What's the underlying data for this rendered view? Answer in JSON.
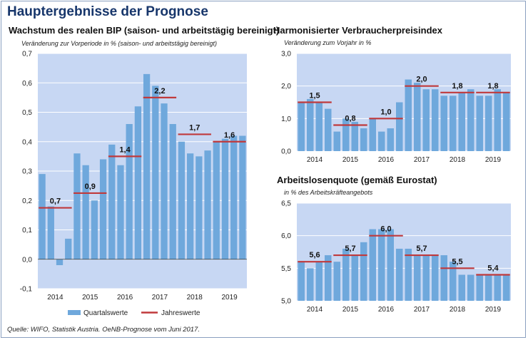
{
  "title": "Hauptergebnisse der Prognose",
  "source": "Quelle: WIFO, Statistik Austria. OeNB-Prognose vom Juni 2017.",
  "colors": {
    "bar": "#6fa8dc",
    "plot_bg": "#c7d7f3",
    "annual_line": "#c0393b",
    "title": "#17366b"
  },
  "panels": {
    "gdp": {
      "title": "Wachstum des realen BIP (saison- und arbeitstägig bereinigt)",
      "unit": "Veränderung zur Vorperiode in % (saison- und arbeitstägig bereinigt)",
      "legend": {
        "bars": "Quartalswerte",
        "line": "Jahreswerte"
      }
    },
    "hicp": {
      "title": "Harmonisierter Verbraucherpreisindex",
      "unit": "Veränderung zum Vorjahr in %"
    },
    "unemp": {
      "title": "Arbeitslosenquote (gemäß Eurostat)",
      "unit": "in % des Arbeitskräfteangebots"
    }
  },
  "chart_data": [
    {
      "id": "gdp",
      "type": "bar",
      "title": "Wachstum des realen BIP (saison- und arbeitstägig bereinigt)",
      "ylabel": "Veränderung zur Vorperiode in % (saison- und arbeitstägig bereinigt)",
      "ylim": [
        -0.1,
        0.7
      ],
      "yticks": [
        -0.1,
        0.0,
        0.1,
        0.2,
        0.3,
        0.4,
        0.5,
        0.6,
        0.7
      ],
      "ytick_labels": [
        "-0,1",
        "0,0",
        "0,1",
        "0,2",
        "0,3",
        "0,4",
        "0,5",
        "0,6",
        "0,7"
      ],
      "grid": true,
      "years": [
        "2014",
        "2015",
        "2016",
        "2017",
        "2018",
        "2019"
      ],
      "series": [
        {
          "name": "Quartalswerte",
          "type": "bar",
          "values": [
            0.29,
            0.18,
            -0.02,
            0.07,
            0.36,
            0.32,
            0.2,
            0.34,
            0.39,
            0.32,
            0.46,
            0.52,
            0.63,
            0.59,
            0.53,
            0.46,
            0.4,
            0.36,
            0.35,
            0.37,
            0.4,
            0.41,
            0.42,
            0.42
          ]
        },
        {
          "name": "Jahreswerte",
          "type": "step",
          "values": [
            0.175,
            0.225,
            0.35,
            0.55,
            0.425,
            0.4
          ],
          "labels": [
            "0,7",
            "0,9",
            "1,4",
            "2,2",
            "1,7",
            "1,6"
          ]
        }
      ],
      "legend": [
        "Quartalswerte",
        "Jahreswerte"
      ]
    },
    {
      "id": "hicp",
      "type": "bar",
      "title": "Harmonisierter Verbraucherpreisindex",
      "ylabel": "Veränderung zum Vorjahr in %",
      "ylim": [
        0.0,
        3.0
      ],
      "yticks": [
        0.0,
        1.0,
        2.0,
        3.0
      ],
      "ytick_labels": [
        "0,0",
        "1,0",
        "2,0",
        "3,0"
      ],
      "grid": true,
      "years": [
        "2014",
        "2015",
        "2016",
        "2017",
        "2018",
        "2019"
      ],
      "series": [
        {
          "name": "Quartalswerte",
          "type": "bar",
          "values": [
            1.5,
            1.6,
            1.5,
            1.3,
            0.6,
            1.0,
            0.9,
            0.7,
            1.0,
            0.6,
            0.7,
            1.5,
            2.2,
            2.1,
            1.9,
            1.9,
            1.7,
            1.7,
            1.8,
            1.9,
            1.7,
            1.7,
            1.9,
            1.8
          ]
        },
        {
          "name": "Jahreswerte",
          "type": "step",
          "values": [
            1.5,
            0.8,
            1.0,
            2.0,
            1.8,
            1.8
          ],
          "labels": [
            "1,5",
            "0,8",
            "1,0",
            "2,0",
            "1,8",
            "1,8"
          ]
        }
      ]
    },
    {
      "id": "unemp",
      "type": "bar",
      "title": "Arbeitslosenquote (gemäß Eurostat)",
      "ylabel": "in % des Arbeitskräfteangebots",
      "ylim": [
        5.0,
        6.5
      ],
      "yticks": [
        5.0,
        5.5,
        6.0,
        6.5
      ],
      "ytick_labels": [
        "5,0",
        "5,5",
        "6,0",
        "6,5"
      ],
      "grid": true,
      "years": [
        "2014",
        "2015",
        "2016",
        "2017",
        "2018",
        "2019"
      ],
      "series": [
        {
          "name": "Quartalswerte",
          "type": "bar",
          "values": [
            5.6,
            5.5,
            5.6,
            5.7,
            5.6,
            5.8,
            5.7,
            5.9,
            6.1,
            6.1,
            6.1,
            5.8,
            5.8,
            5.7,
            5.7,
            5.7,
            5.7,
            5.6,
            5.4,
            5.4,
            5.4,
            5.4,
            5.4,
            5.4
          ]
        },
        {
          "name": "Jahreswerte",
          "type": "step",
          "values": [
            5.6,
            5.7,
            6.0,
            5.7,
            5.5,
            5.4
          ],
          "labels": [
            "5,6",
            "5,7",
            "6,0",
            "5,7",
            "5,5",
            "5,4"
          ]
        }
      ]
    }
  ]
}
